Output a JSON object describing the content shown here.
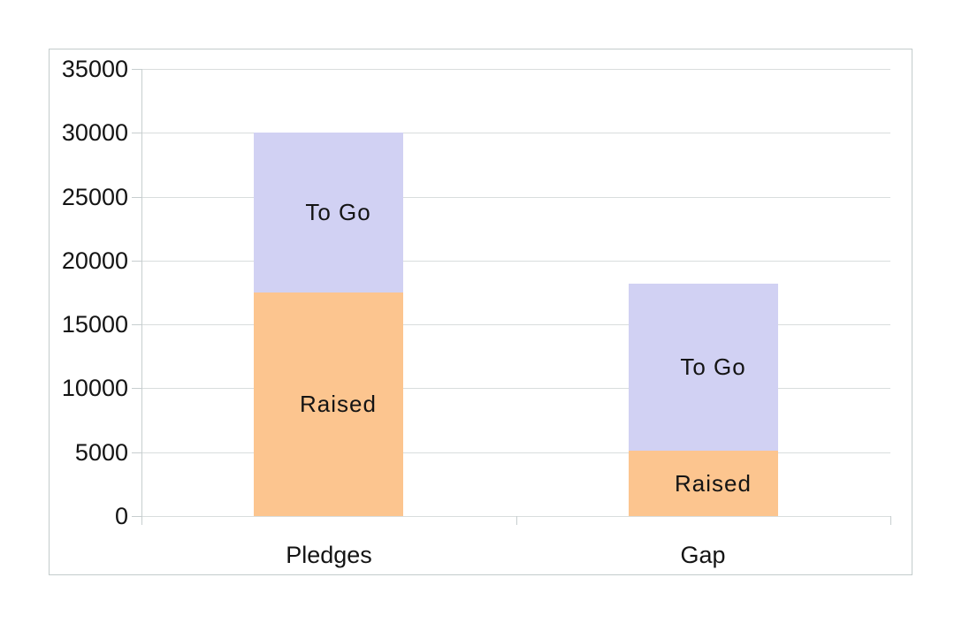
{
  "chart_data": {
    "type": "bar",
    "variant": "stacked-column",
    "title": "",
    "xlabel": "",
    "ylabel": "",
    "categories": [
      "Pledges",
      "Gap"
    ],
    "series": [
      {
        "name": "Raised",
        "values": [
          17500,
          5100
        ],
        "color": "#fcc58f"
      },
      {
        "name": "To Go",
        "values": [
          12500,
          13100
        ],
        "color": "#d1d1f3"
      }
    ],
    "ylim": [
      0,
      35000
    ],
    "yticks": [
      0,
      5000,
      10000,
      15000,
      20000,
      25000,
      30000,
      35000
    ],
    "grid": "horizontal",
    "legend": "none",
    "segment_labels_inside": true
  },
  "colors": {
    "background": "#ffffff",
    "chart_border": "#c3cccc",
    "gridline": "#d9dddd",
    "axis": "#c7cecf",
    "text": "#141414"
  }
}
